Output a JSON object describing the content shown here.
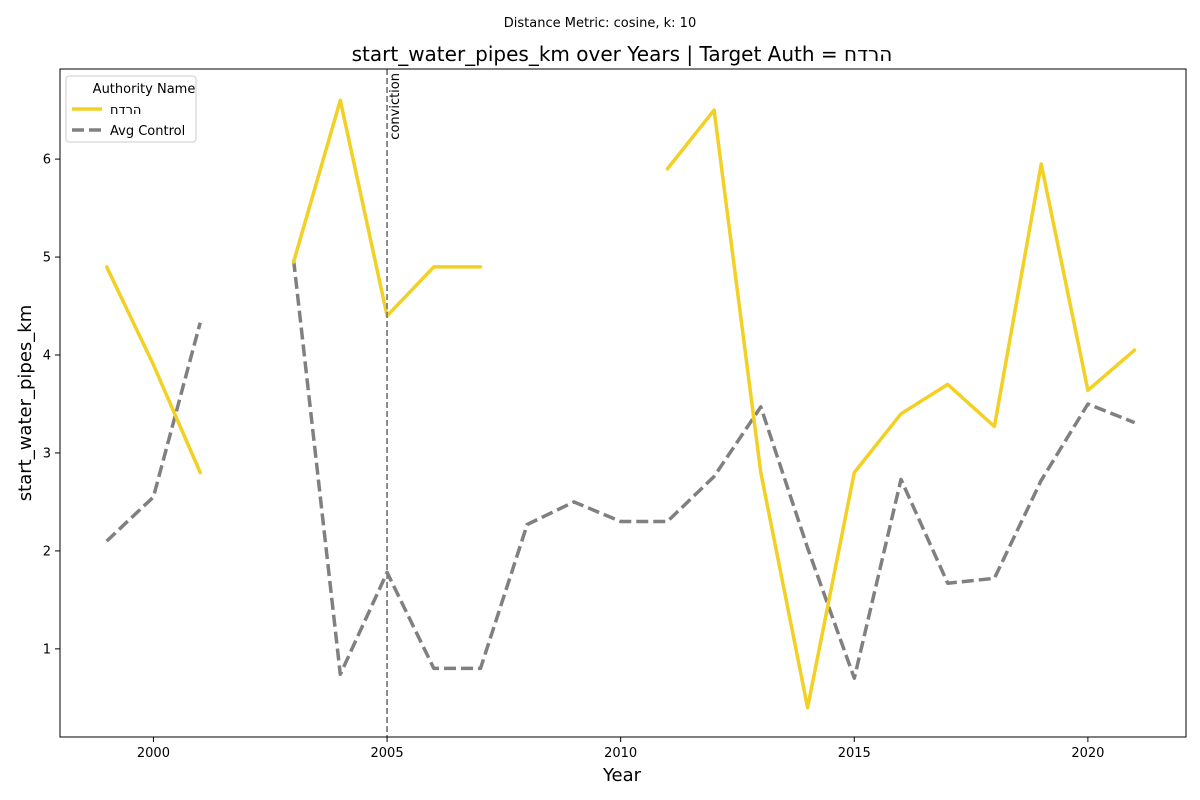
{
  "chart_data": {
    "type": "line",
    "suptitle": "Distance Metric: cosine, k: 10",
    "title": "start_water_pipes_km over Years | Target Auth = הרדח",
    "xlabel": "Year",
    "ylabel": "start_water_pipes_km",
    "xlim": [
      1998,
      2022.1
    ],
    "ylim": [
      0.1,
      6.92
    ],
    "xticks": [
      2000,
      2005,
      2010,
      2015,
      2020
    ],
    "yticks": [
      1,
      2,
      3,
      4,
      5,
      6
    ],
    "grid": false,
    "legend": {
      "title": "Authority Name",
      "position": "top-left"
    },
    "annotations": [
      {
        "type": "vline",
        "x": 2005,
        "label": "conviction"
      }
    ],
    "colors": {
      "target": "#f2d024",
      "control": "#808080",
      "vline": "#808080"
    },
    "series": [
      {
        "name": "הרדח",
        "style": "solid",
        "points": [
          [
            1999,
            4.9
          ],
          [
            2000,
            3.9
          ],
          [
            2001,
            2.8
          ],
          [
            2002,
            null
          ],
          [
            2003,
            4.95
          ],
          [
            2004,
            6.6
          ],
          [
            2005,
            4.4
          ],
          [
            2006,
            4.9
          ],
          [
            2007,
            4.9
          ],
          [
            2008,
            null
          ],
          [
            2009,
            null
          ],
          [
            2010,
            null
          ],
          [
            2011,
            5.9
          ],
          [
            2012,
            6.5
          ],
          [
            2013,
            2.8
          ],
          [
            2014,
            0.4
          ],
          [
            2015,
            2.8
          ],
          [
            2016,
            3.4
          ],
          [
            2017,
            3.7
          ],
          [
            2018,
            3.27
          ],
          [
            2019,
            5.95
          ],
          [
            2020,
            3.64
          ],
          [
            2021,
            4.05
          ]
        ]
      },
      {
        "name": "Avg Control",
        "style": "dashed",
        "points": [
          [
            1999,
            2.1
          ],
          [
            2000,
            2.55
          ],
          [
            2001,
            4.33
          ],
          [
            2002,
            null
          ],
          [
            2003,
            4.97
          ],
          [
            2004,
            0.74
          ],
          [
            2005,
            1.78
          ],
          [
            2006,
            0.8
          ],
          [
            2007,
            0.8
          ],
          [
            2008,
            2.27
          ],
          [
            2009,
            2.5
          ],
          [
            2010,
            2.3
          ],
          [
            2011,
            2.3
          ],
          [
            2012,
            2.76
          ],
          [
            2013,
            3.47
          ],
          [
            2014,
            2.03
          ],
          [
            2015,
            0.7
          ],
          [
            2016,
            2.73
          ],
          [
            2017,
            1.67
          ],
          [
            2018,
            1.72
          ],
          [
            2019,
            2.72
          ],
          [
            2020,
            3.5
          ],
          [
            2021,
            3.31
          ]
        ]
      }
    ]
  }
}
